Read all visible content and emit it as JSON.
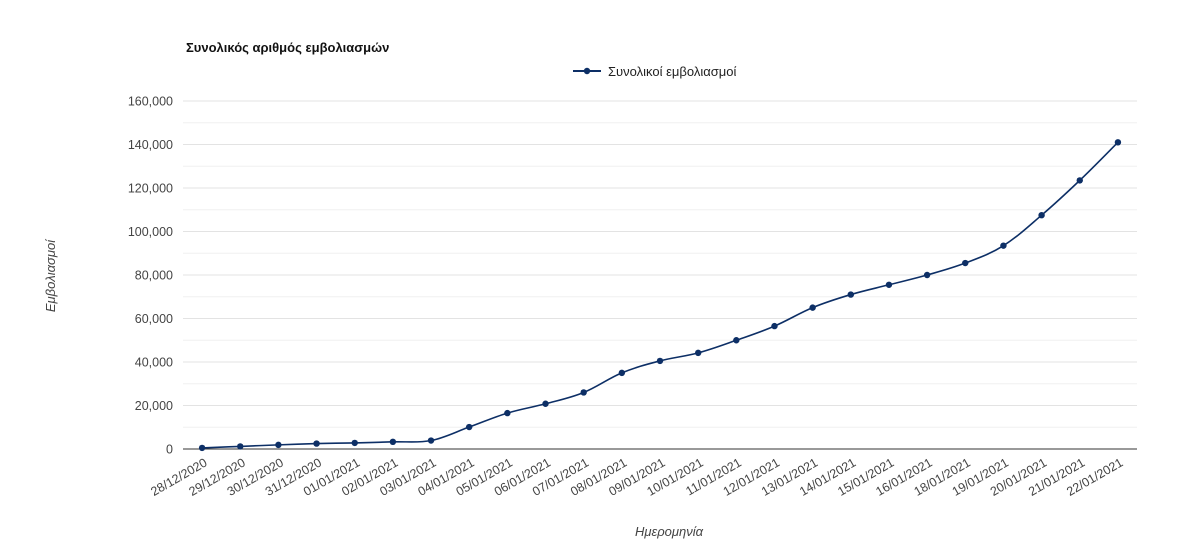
{
  "chart_data": {
    "type": "line",
    "title": "Συνολικός αριθμός εμβολιασμών",
    "xlabel": "Ημερομηνία",
    "ylabel": "Εμβολιασμοί",
    "ylim": [
      0,
      160000
    ],
    "yticks": [
      "0",
      "20,000",
      "40,000",
      "60,000",
      "80,000",
      "100,000",
      "120,000",
      "140,000",
      "160,000"
    ],
    "grid": true,
    "legend_position": "top",
    "color": "#0d2f66",
    "categories": [
      "28/12/2020",
      "29/12/2020",
      "30/12/2020",
      "31/12/2020",
      "01/01/2021",
      "02/01/2021",
      "03/01/2021",
      "04/01/2021",
      "05/01/2021",
      "06/01/2021",
      "07/01/2021",
      "08/01/2021",
      "09/01/2021",
      "10/01/2021",
      "11/01/2021",
      "12/01/2021",
      "13/01/2021",
      "14/01/2021",
      "15/01/2021",
      "16/01/2021",
      "18/01/2021",
      "19/01/2021",
      "20/01/2021",
      "21/01/2021",
      "22/01/2021"
    ],
    "series": [
      {
        "name": "Συνολικοί εμβολιασμοί",
        "values": [
          500,
          1200,
          1900,
          2500,
          2800,
          3300,
          3900,
          10100,
          16500,
          20800,
          26000,
          35000,
          40500,
          44200,
          50000,
          56500,
          65000,
          71000,
          75500,
          80000,
          85500,
          93500,
          107500,
          123500,
          141000
        ]
      }
    ]
  }
}
